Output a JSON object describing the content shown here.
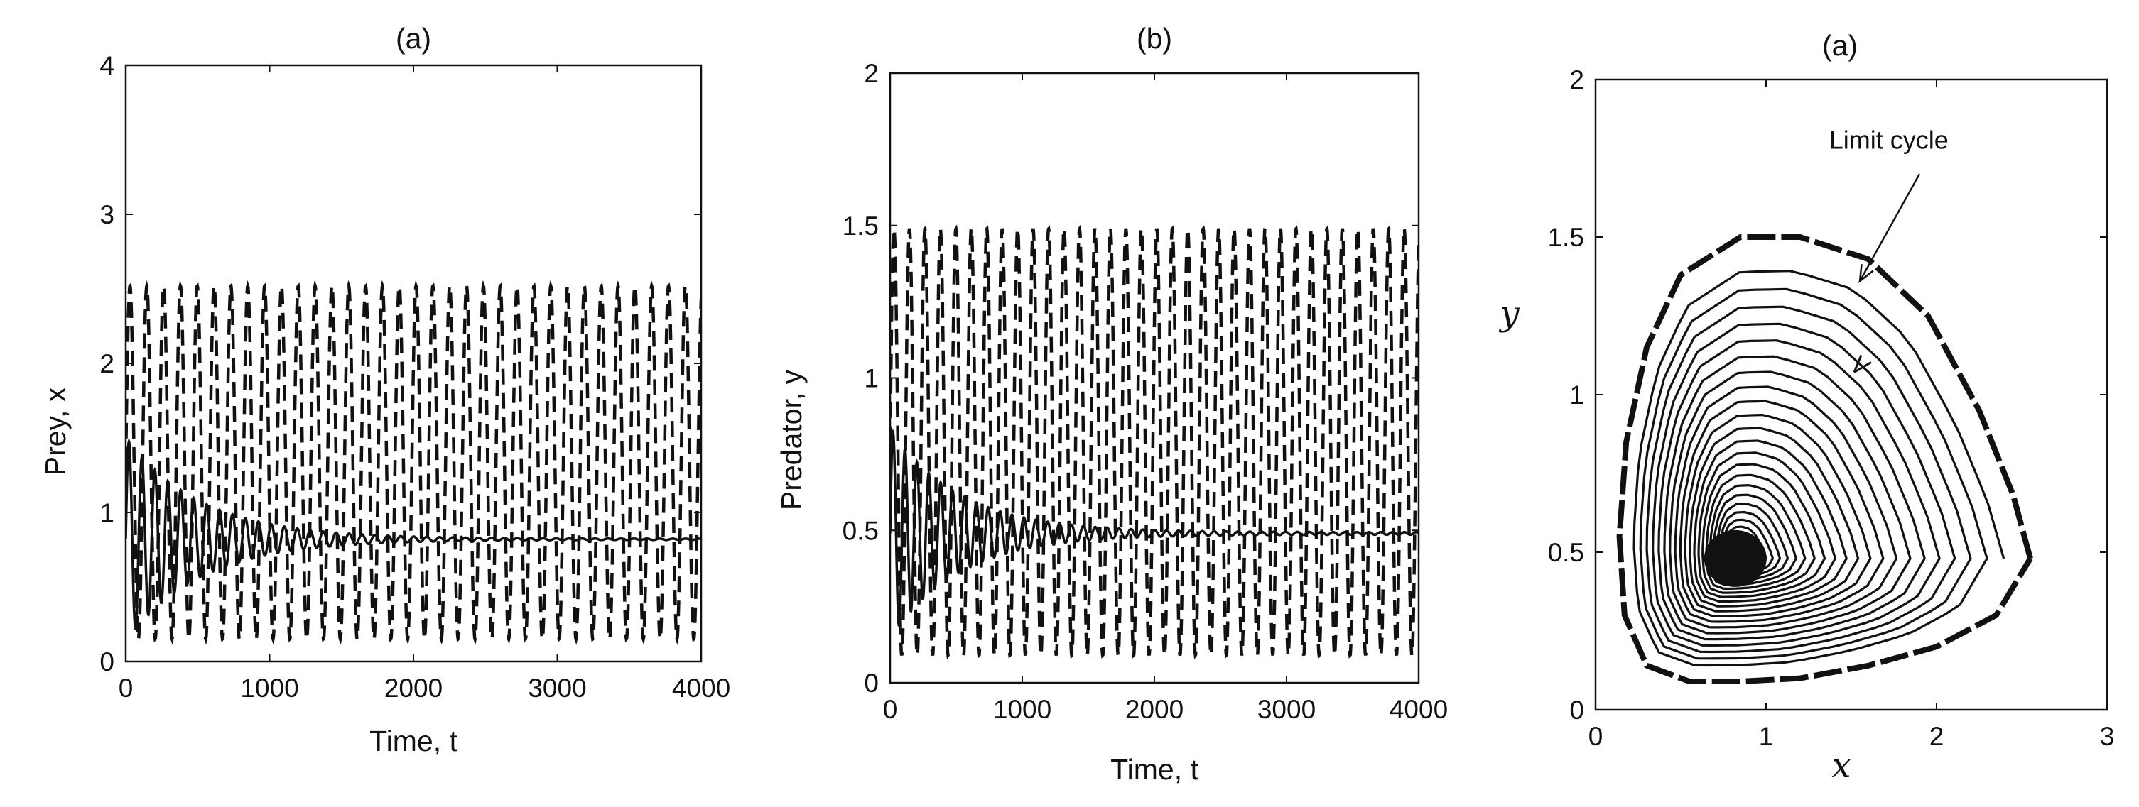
{
  "chart_data": [
    {
      "type": "line",
      "title": "(a)",
      "xlabel": "Time, t",
      "ylabel": "Prey, x",
      "xlim": [
        0,
        4000
      ],
      "ylim": [
        0,
        4
      ],
      "xticks": [
        "0",
        "1000",
        "2000",
        "3000",
        "4000"
      ],
      "yticks": [
        "0",
        "1",
        "2",
        "3",
        "4"
      ],
      "grid": false,
      "series": [
        {
          "style": "dashed",
          "kind": "sustained-oscillation",
          "min": 0.15,
          "max": 2.52,
          "period": 117
        },
        {
          "style": "solid",
          "kind": "damped-oscillation",
          "equilibrium": 0.82,
          "initial_max": 1.5,
          "initial_min": 0.25,
          "period": 90
        }
      ]
    },
    {
      "type": "line",
      "title": "(b)",
      "xlabel": "Time, t",
      "ylabel": "Predator, y",
      "xlim": [
        0,
        4000
      ],
      "ylim": [
        0,
        2
      ],
      "xticks": [
        "0",
        "1000",
        "2000",
        "3000",
        "4000"
      ],
      "yticks": [
        "0",
        "0.5",
        "1",
        "1.5",
        "2"
      ],
      "grid": false,
      "series": [
        {
          "style": "dashed",
          "kind": "sustained-oscillation",
          "min": 0.09,
          "max": 1.49,
          "period": 117
        },
        {
          "style": "solid",
          "kind": "damped-oscillation",
          "equilibrium": 0.49,
          "initial_max": 0.8,
          "initial_min": 0.15,
          "period": 90
        }
      ]
    },
    {
      "type": "line",
      "title": "(a)",
      "xlabel": "x",
      "ylabel": "y",
      "xlim": [
        0,
        3
      ],
      "ylim": [
        0,
        2
      ],
      "xticks": [
        "0",
        "1",
        "2",
        "3"
      ],
      "yticks": [
        "0",
        "0.5",
        "1",
        "1.5",
        "2"
      ],
      "grid": false,
      "equilibrium": [
        0.82,
        0.48
      ],
      "limit_cycle": [
        [
          2.55,
          0.48
        ],
        [
          2.45,
          0.68
        ],
        [
          2.25,
          0.95
        ],
        [
          1.95,
          1.25
        ],
        [
          1.6,
          1.43
        ],
        [
          1.2,
          1.5
        ],
        [
          0.85,
          1.5
        ],
        [
          0.5,
          1.38
        ],
        [
          0.3,
          1.15
        ],
        [
          0.18,
          0.85
        ],
        [
          0.14,
          0.55
        ],
        [
          0.17,
          0.3
        ],
        [
          0.3,
          0.14
        ],
        [
          0.55,
          0.09
        ],
        [
          0.85,
          0.09
        ],
        [
          1.2,
          0.1
        ],
        [
          1.6,
          0.14
        ],
        [
          2.0,
          0.2
        ],
        [
          2.35,
          0.3
        ],
        [
          2.55,
          0.48
        ]
      ],
      "annotations": [
        {
          "text": "Limit cycle",
          "points_to": [
            1.55,
            1.36
          ]
        }
      ]
    }
  ]
}
